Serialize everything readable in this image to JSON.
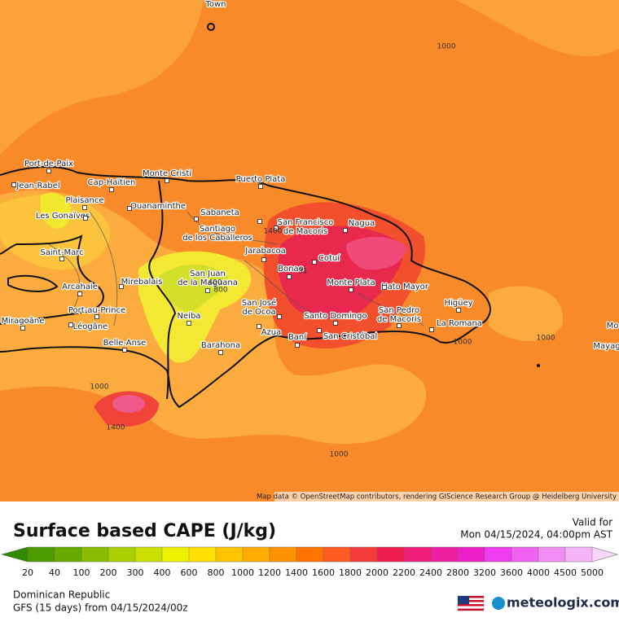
{
  "map": {
    "places": [
      [
        "Town"
      ],
      [
        "Port-de-Paix"
      ],
      [
        "Jean-Rabel"
      ],
      [
        "Cap-Haïtien"
      ],
      [
        "Monte Cristi"
      ],
      [
        "Puerto Plata"
      ],
      [
        "Plaisance"
      ],
      [
        "Ouanaminthe"
      ],
      [
        "Les Gonaïves"
      ],
      [
        "Sabaneta"
      ],
      [
        "Santiago",
        "de los Caballeros"
      ],
      [
        "San Francisco",
        "de Macoris"
      ],
      [
        "Nagua"
      ],
      [
        "Jarabacoa"
      ],
      [
        "Saint-Marc"
      ],
      [
        "Cotuí"
      ],
      [
        "Bonao"
      ],
      [
        "San Juan",
        "de la Maguana"
      ],
      [
        "Mirebalais"
      ],
      [
        "Arcahaie"
      ],
      [
        "Monte Plata"
      ],
      [
        "Hato Mayor"
      ],
      [
        "Higüey"
      ],
      [
        "San José",
        "de Ocoa"
      ],
      [
        "Port-au-Prince"
      ],
      [
        "Neiba"
      ],
      [
        "Santo Domingo"
      ],
      [
        "San Pedro",
        "de Macoris"
      ],
      [
        "Miragoâne"
      ],
      [
        "Léogâne"
      ],
      [
        "La Romana"
      ],
      [
        "Azua"
      ],
      [
        "Baní"
      ],
      [
        "San Cristóbal"
      ],
      [
        "Belle-Anse"
      ],
      [
        "Barahona"
      ],
      [
        "Mo"
      ],
      [
        "Mayag"
      ]
    ],
    "contour_labels": [
      1000,
      1000,
      1000,
      1000,
      1000,
      1400,
      1400,
      400,
      800,
      31
    ],
    "attribution": "Map data © OpenStreetMap contributors, rendering GIScience Research Group @ Heidelberg University"
  },
  "legend": {
    "title": "Surface based CAPE (J/kg)",
    "valid_label": "Valid for",
    "valid_time": "Mon 04/15/2024, 04:00pm AST",
    "levels": [
      20,
      40,
      100,
      200,
      300,
      400,
      600,
      800,
      1000,
      1200,
      1400,
      1600,
      1800,
      2000,
      2200,
      2400,
      2800,
      3200,
      3600,
      4000,
      4500,
      5000
    ],
    "colors": [
      "#2f8a00",
      "#4a9a00",
      "#68ab00",
      "#88bd00",
      "#a8cf00",
      "#cbe000",
      "#eef200",
      "#ffe000",
      "#ffc400",
      "#ffab00",
      "#ff9200",
      "#ff7400",
      "#ff5a20",
      "#f53a3a",
      "#ee1e4e",
      "#ee1e78",
      "#ee1ea0",
      "#ee1ec8",
      "#f03cf0",
      "#f062f0",
      "#f08cf2",
      "#f4b4f6",
      "#f8d6fa"
    ],
    "region": "Dominican Republic",
    "model": "GFS (15 days) from  04/15/2024/00z",
    "brand": "meteologix.com"
  }
}
